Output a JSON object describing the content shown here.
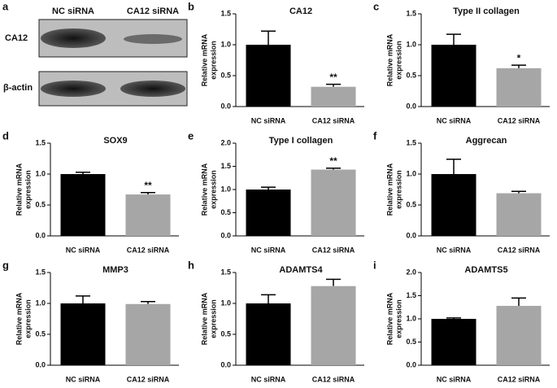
{
  "blot": {
    "panel": "a",
    "lanes": [
      "NC siRNA",
      "CA12 siRNA"
    ],
    "rows": [
      "CA12",
      "β-actin"
    ]
  },
  "chart_data": [
    {
      "type": "bar",
      "panel": "b",
      "title": "CA12",
      "ylabel": [
        "Relative mRNA",
        "expression"
      ],
      "categories": [
        "NC siRNA",
        "CA12 siRNA"
      ],
      "values": [
        1.0,
        0.32
      ],
      "errors": [
        0.22,
        0.04
      ],
      "significance": [
        null,
        "**"
      ],
      "colors": [
        "#000000",
        "#a6a6a6"
      ],
      "ylim": [
        0,
        1.5
      ],
      "yticks": [
        {
          "value": 0,
          "label": "0.0"
        },
        {
          "value": 0.5,
          "label": "0.5"
        },
        {
          "value": 1,
          "label": "1.0"
        },
        {
          "value": 1.5,
          "label": "1.5"
        }
      ]
    },
    {
      "type": "bar",
      "panel": "c",
      "title": "Type II collagen",
      "ylabel": [
        "Relative mRNA",
        "expression"
      ],
      "categories": [
        "NC siRNA",
        "CA12 siRNA"
      ],
      "values": [
        1.0,
        0.62
      ],
      "errors": [
        0.17,
        0.05
      ],
      "significance": [
        null,
        "*"
      ],
      "colors": [
        "#000000",
        "#a6a6a6"
      ],
      "ylim": [
        0,
        1.5
      ],
      "yticks": [
        {
          "value": 0,
          "label": "0.0"
        },
        {
          "value": 0.5,
          "label": "0.5"
        },
        {
          "value": 1,
          "label": "1.0"
        },
        {
          "value": 1.5,
          "label": "1.5"
        }
      ]
    },
    {
      "type": "bar",
      "panel": "d",
      "title": "SOX9",
      "ylabel": [
        "Relative mRNA",
        "expression"
      ],
      "categories": [
        "NC siRNA",
        "CA12 siRNA"
      ],
      "values": [
        1.0,
        0.67
      ],
      "errors": [
        0.03,
        0.03
      ],
      "significance": [
        null,
        "**"
      ],
      "colors": [
        "#000000",
        "#a6a6a6"
      ],
      "ylim": [
        0,
        1.5
      ],
      "yticks": [
        {
          "value": 0,
          "label": "0.0"
        },
        {
          "value": 0.5,
          "label": "0.5"
        },
        {
          "value": 1,
          "label": "1.0"
        },
        {
          "value": 1.5,
          "label": "1.5"
        }
      ]
    },
    {
      "type": "bar",
      "panel": "e",
      "title": "Type I collagen",
      "ylabel": [
        "Relative mRNA",
        "expression"
      ],
      "categories": [
        "NC siRNA",
        "CA12 siRNA"
      ],
      "values": [
        1.0,
        1.43
      ],
      "errors": [
        0.05,
        0.03
      ],
      "significance": [
        null,
        "**"
      ],
      "colors": [
        "#000000",
        "#a6a6a6"
      ],
      "ylim": [
        0,
        2
      ],
      "yticks": [
        {
          "value": 0,
          "label": "0.0"
        },
        {
          "value": 0.5,
          "label": "0.5"
        },
        {
          "value": 1,
          "label": "1.0"
        },
        {
          "value": 1.5,
          "label": "1.5"
        },
        {
          "value": 2,
          "label": "2.0"
        }
      ]
    },
    {
      "type": "bar",
      "panel": "f",
      "title": "Aggrecan",
      "ylabel": [
        "Relative mRNA",
        "expression"
      ],
      "categories": [
        "NC siRNA",
        "CA12 siRNA"
      ],
      "values": [
        1.0,
        0.69
      ],
      "errors": [
        0.24,
        0.03
      ],
      "significance": [
        null,
        null
      ],
      "colors": [
        "#000000",
        "#a6a6a6"
      ],
      "ylim": [
        0,
        1.5
      ],
      "yticks": [
        {
          "value": 0,
          "label": "0.0"
        },
        {
          "value": 0.5,
          "label": "0.5"
        },
        {
          "value": 1,
          "label": "1.0"
        },
        {
          "value": 1.5,
          "label": "1.5"
        }
      ]
    },
    {
      "type": "bar",
      "panel": "g",
      "title": "MMP3",
      "ylabel": [
        "Relative mRNA",
        "expression"
      ],
      "categories": [
        "NC siRNA",
        "CA12 siRNA"
      ],
      "values": [
        1.0,
        0.99
      ],
      "errors": [
        0.12,
        0.04
      ],
      "significance": [
        null,
        null
      ],
      "colors": [
        "#000000",
        "#a6a6a6"
      ],
      "ylim": [
        0,
        1.5
      ],
      "yticks": [
        {
          "value": 0,
          "label": "0.0"
        },
        {
          "value": 0.5,
          "label": "0.5"
        },
        {
          "value": 1,
          "label": "1.0"
        },
        {
          "value": 1.5,
          "label": "1.5"
        }
      ]
    },
    {
      "type": "bar",
      "panel": "h",
      "title": "ADAMTS4",
      "ylabel": [
        "Relative mRNA",
        "expression"
      ],
      "categories": [
        "NC siRNA",
        "CA12 siRNA"
      ],
      "values": [
        1.0,
        1.28
      ],
      "errors": [
        0.14,
        0.11
      ],
      "significance": [
        null,
        null
      ],
      "colors": [
        "#000000",
        "#a6a6a6"
      ],
      "ylim": [
        0,
        1.5
      ],
      "yticks": [
        {
          "value": 0,
          "label": "0.0"
        },
        {
          "value": 0.5,
          "label": "0.5"
        },
        {
          "value": 1,
          "label": "1.0"
        },
        {
          "value": 1.5,
          "label": "1.5"
        }
      ]
    },
    {
      "type": "bar",
      "panel": "i",
      "title": "ADAMTS5",
      "ylabel": [
        "Relative mRNA",
        "expression"
      ],
      "categories": [
        "NC siRNA",
        "CA12 siRNA"
      ],
      "values": [
        1.0,
        1.28
      ],
      "errors": [
        0.02,
        0.17
      ],
      "significance": [
        null,
        null
      ],
      "colors": [
        "#000000",
        "#a6a6a6"
      ],
      "ylim": [
        0,
        2
      ],
      "yticks": [
        {
          "value": 0,
          "label": "0.0"
        },
        {
          "value": 0.5,
          "label": "0.5"
        },
        {
          "value": 1,
          "label": "1.0"
        },
        {
          "value": 1.5,
          "label": "1.5"
        },
        {
          "value": 2,
          "label": "2.0"
        }
      ]
    }
  ]
}
